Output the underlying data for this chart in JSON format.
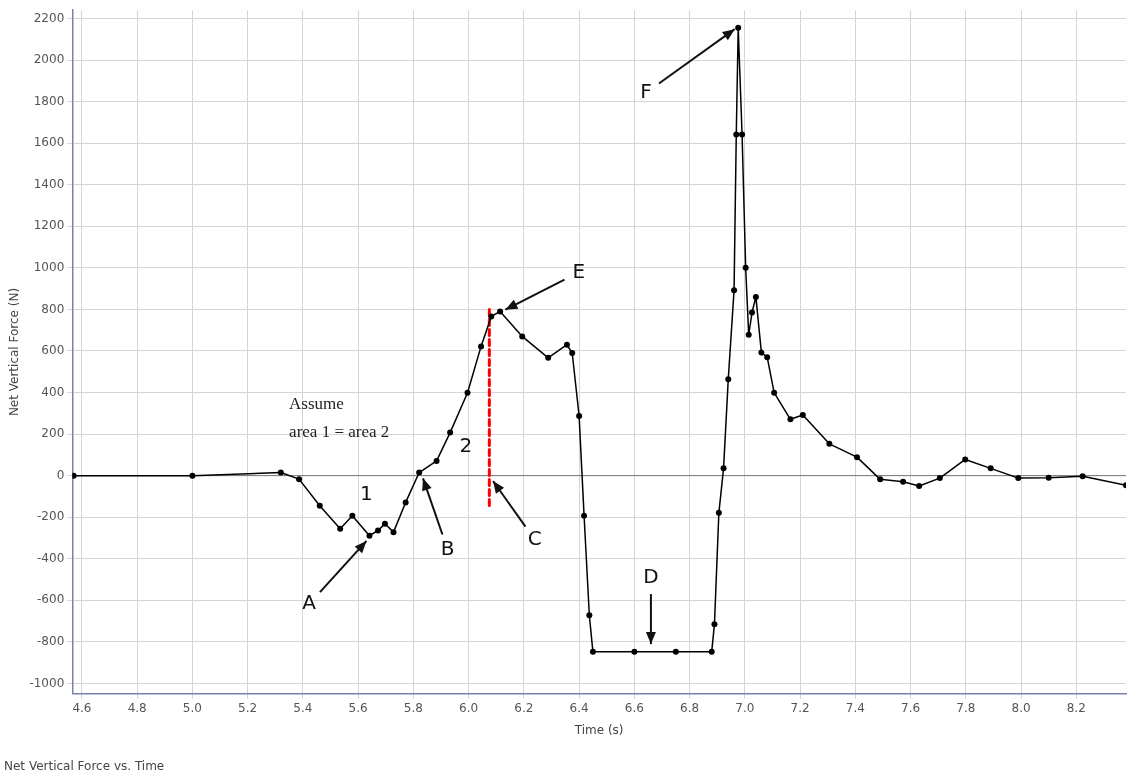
{
  "chart_data": {
    "type": "line",
    "title": "Net Vertical Force vs. Time",
    "xlabel": "Time (s)",
    "ylabel": "Net Vertical Force (N)",
    "xlim": [
      4.565,
      8.38
    ],
    "xticks": [
      4.6,
      4.8,
      {
        "value": 5,
        "label": "5.0"
      },
      5.2,
      5.4,
      5.6,
      5.8,
      {
        "value": 6,
        "label": "6.0"
      },
      6.2,
      6.4,
      6.6,
      6.8,
      {
        "value": 7,
        "label": "7.0"
      },
      7.2,
      7.4,
      7.6,
      7.8,
      {
        "value": 8,
        "label": "8.0"
      },
      8.2
    ],
    "ylim": [
      -1050,
      2240
    ],
    "yticks": [
      -1000,
      -800,
      -600,
      -400,
      -200,
      0,
      200,
      400,
      600,
      800,
      1000,
      1200,
      1400,
      1600,
      1800,
      2000,
      2200
    ],
    "grid": true,
    "marker": "circle",
    "line_style": "solid",
    "series": [
      {
        "color": "#000000",
        "x": [
          4.57,
          5.0,
          5.32,
          5.386,
          5.461,
          5.535,
          5.579,
          5.641,
          5.672,
          5.697,
          5.728,
          5.772,
          5.821,
          5.884,
          5.933,
          5.996,
          6.045,
          6.082,
          6.114,
          6.194,
          6.288,
          6.356,
          6.375,
          6.4,
          6.418,
          6.437,
          6.45,
          6.6,
          6.75,
          6.88,
          6.89,
          6.906,
          6.923,
          6.94,
          6.961,
          6.969,
          6.976,
          6.99,
          7.003,
          7.014,
          7.026,
          7.04,
          7.06,
          7.081,
          7.106,
          7.165,
          7.21,
          7.306,
          7.406,
          7.49,
          7.573,
          7.631,
          7.706,
          7.798,
          7.89,
          7.99,
          8.1,
          8.223,
          8.38
        ],
        "values": [
          0,
          0,
          15,
          -17,
          -145,
          -256,
          -193,
          -289,
          -264,
          -232,
          -272,
          -129,
          15,
          71,
          207,
          399,
          622,
          766,
          790,
          670,
          567,
          630,
          590,
          287,
          -193,
          -672,
          -848,
          -848,
          -848,
          -848,
          -715,
          -179,
          35,
          464,
          892,
          1642,
          2156,
          1642,
          1000,
          678,
          785,
          860,
          592,
          570,
          399,
          271,
          292,
          153,
          89,
          -18,
          -29,
          -50,
          -12,
          78,
          35,
          -12,
          -10,
          -3,
          -46
        ]
      },
      {
        "type": "line",
        "color": "#ff0000",
        "line_style": "dashed",
        "marker": "none",
        "x": [
          6.075,
          6.075
        ],
        "values": [
          800,
          -160
        ]
      }
    ],
    "annotations": [
      {
        "text": "A",
        "x": 5.64,
        "y": -300
      },
      {
        "text": "B",
        "x": 5.83,
        "y": 5
      },
      {
        "text": "C",
        "x": 6.08,
        "y": -10
      },
      {
        "text": "D",
        "x": 6.66,
        "y": -830
      },
      {
        "text": "E",
        "x": 6.12,
        "y": 790
      },
      {
        "text": "F",
        "x": 6.975,
        "y": 2160
      },
      "1",
      "2",
      "Assume\narea 1 = area 2"
    ]
  }
}
